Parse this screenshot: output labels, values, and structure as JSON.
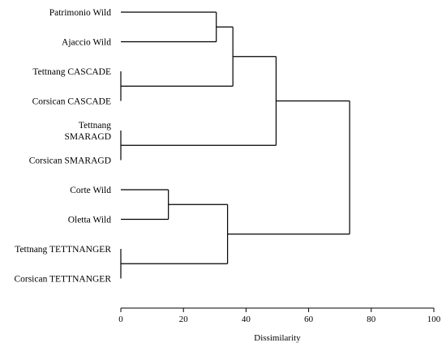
{
  "chart_data": {
    "type": "dendrogram",
    "xlabel": "Dissimilarity",
    "xlim": [
      0,
      100
    ],
    "xticks": [
      0,
      20,
      40,
      60,
      80,
      100
    ],
    "leaves": [
      {
        "id": "L0",
        "lines": [
          "Patrimonio Wild"
        ]
      },
      {
        "id": "L1",
        "lines": [
          "Ajaccio Wild"
        ]
      },
      {
        "id": "L2",
        "lines": [
          "Tettnang CASCADE"
        ]
      },
      {
        "id": "L3",
        "lines": [
          "Corsican CASCADE"
        ]
      },
      {
        "id": "L4",
        "lines": [
          "Tettnang",
          "SMARAGD"
        ]
      },
      {
        "id": "L5",
        "lines": [
          "Corsican SMARAGD"
        ]
      },
      {
        "id": "L6",
        "lines": [
          "Corte Wild"
        ]
      },
      {
        "id": "L7",
        "lines": [
          "Oletta Wild"
        ]
      },
      {
        "id": "L8",
        "lines": [
          "Tettnang TETTNANGER"
        ]
      },
      {
        "id": "L9",
        "lines": [
          "Corsican TETTNANGER"
        ]
      }
    ],
    "merges": [
      {
        "id": "M1",
        "left": "L0",
        "right": "L1",
        "height": 30.5
      },
      {
        "id": "M2",
        "left": "L2",
        "right": "L3",
        "height": 0
      },
      {
        "id": "M3",
        "left": "L4",
        "right": "L5",
        "height": 0
      },
      {
        "id": "M4",
        "left": "L6",
        "right": "L7",
        "height": 15.2
      },
      {
        "id": "M5",
        "left": "L8",
        "right": "L9",
        "height": 0
      },
      {
        "id": "M6",
        "left": "M1",
        "right": "M2",
        "height": 35.8
      },
      {
        "id": "M7",
        "left": "M6",
        "right": "M3",
        "height": 49.6
      },
      {
        "id": "M8",
        "left": "M4",
        "right": "M5",
        "height": 34.1
      },
      {
        "id": "M9",
        "left": "M7",
        "right": "M8",
        "height": 73.1
      }
    ]
  }
}
